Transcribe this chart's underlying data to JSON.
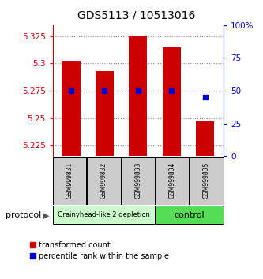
{
  "title": "GDS5113 / 10513016",
  "samples": [
    "GSM999831",
    "GSM999832",
    "GSM999833",
    "GSM999834",
    "GSM999835"
  ],
  "red_values": [
    5.302,
    5.293,
    5.325,
    5.315,
    5.247
  ],
  "blue_percentiles": [
    50,
    50,
    50,
    50,
    45
  ],
  "ylim_left": [
    5.215,
    5.335
  ],
  "ylim_right": [
    0,
    100
  ],
  "yticks_left": [
    5.225,
    5.25,
    5.275,
    5.3,
    5.325
  ],
  "yticks_right": [
    0,
    25,
    50,
    75,
    100
  ],
  "bar_bottom": 5.215,
  "groups": [
    {
      "label": "Grainyhead-like 2 depletion",
      "n_samples": 3,
      "color": "#ccffcc",
      "text_size": 6
    },
    {
      "label": "control",
      "n_samples": 2,
      "color": "#55dd55",
      "text_size": 8
    }
  ],
  "group_box_color": "#cccccc",
  "bar_color": "#cc0000",
  "blue_dot_color": "#0000cc",
  "dotted_line_color": "#888888",
  "left_axis_color": "#cc0000",
  "right_axis_color": "#0000cc",
  "protocol_label": "protocol",
  "legend_red": "transformed count",
  "legend_blue": "percentile rank within the sample",
  "bar_width": 0.55,
  "fig_width": 3.33,
  "fig_height": 3.54,
  "dpi": 100
}
